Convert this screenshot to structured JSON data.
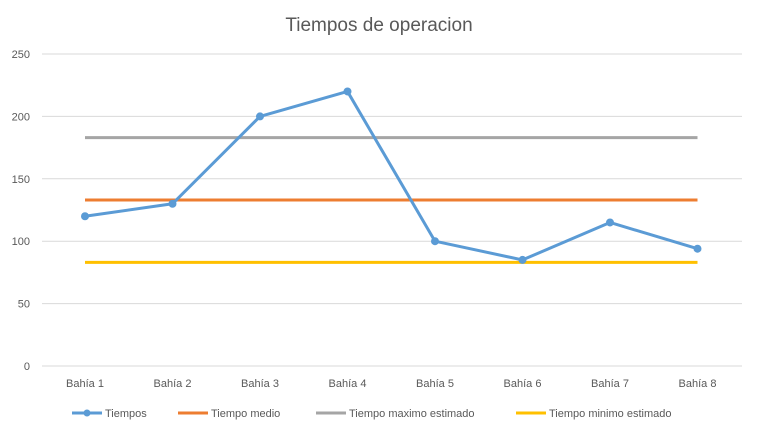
{
  "chart_data": {
    "type": "line",
    "title": "Tiempos de operacion",
    "categories": [
      "Bahía 1",
      "Bahía 2",
      "Bahía 3",
      "Bahía 4",
      "Bahía 5",
      "Bahía 6",
      "Bahía 7",
      "Bahía 8"
    ],
    "ylim": [
      0,
      250
    ],
    "yticks": [
      0,
      50,
      100,
      150,
      200,
      250
    ],
    "grid": true,
    "legend_position": "bottom",
    "series": [
      {
        "name": "Tiempos",
        "values": [
          120,
          130,
          200,
          220,
          100,
          85,
          115,
          94
        ],
        "color": "#5B9BD5",
        "markers": true
      },
      {
        "name": "Tiempo medio",
        "values": [
          133,
          133,
          133,
          133,
          133,
          133,
          133,
          133
        ],
        "color": "#ED7D31",
        "markers": false
      },
      {
        "name": "Tiempo maximo estimado",
        "values": [
          183,
          183,
          183,
          183,
          183,
          183,
          183,
          183
        ],
        "color": "#A5A5A5",
        "markers": false
      },
      {
        "name": "Tiempo minimo estimado",
        "values": [
          83,
          83,
          83,
          83,
          83,
          83,
          83,
          83
        ],
        "color": "#FFC000",
        "markers": false
      }
    ]
  }
}
